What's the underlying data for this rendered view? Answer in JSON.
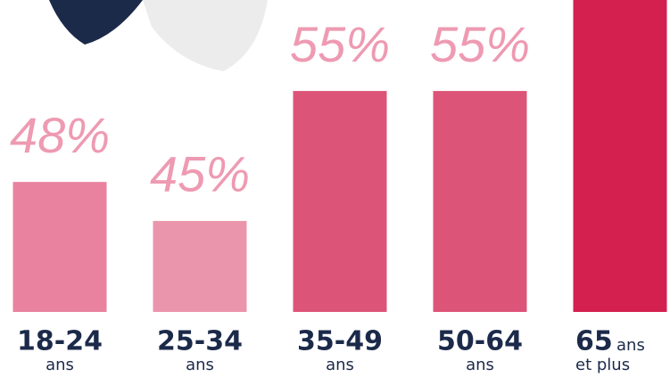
{
  "chart_data": {
    "type": "bar",
    "categories": [
      "18-24",
      "25-34",
      "35-49",
      "50-64",
      "65"
    ],
    "category_units": [
      "ans",
      "ans",
      "ans",
      "ans",
      "ans"
    ],
    "category_notes": [
      null,
      null,
      null,
      null,
      "et plus"
    ],
    "values": [
      48,
      45,
      55,
      55,
      62
    ],
    "value_labels": [
      "48%",
      "45%",
      "55%",
      "55%",
      null
    ],
    "colors": [
      "#e8829f",
      "#eb95ad",
      "#dd5479",
      "#dd5479",
      "#d4204f"
    ],
    "ylim": [
      38,
      62
    ]
  }
}
